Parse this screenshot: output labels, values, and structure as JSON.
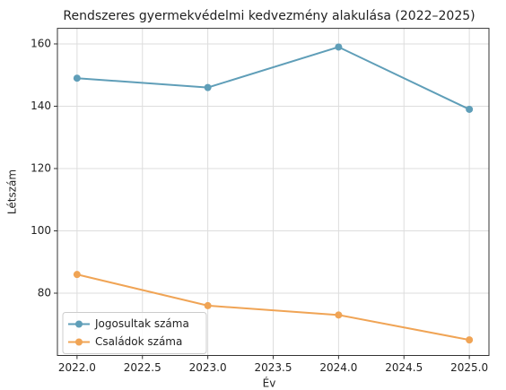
{
  "chart_data": {
    "type": "line",
    "title": "Rendszeres gyermekvédelmi kedvezmény alakulása (2022–2025)",
    "xlabel": "Év",
    "ylabel": "Létszám",
    "x": [
      2022,
      2023,
      2024,
      2025
    ],
    "series": [
      {
        "name": "Jogosultak száma",
        "color": "#5f9eb8",
        "values": [
          149,
          146,
          159,
          139
        ]
      },
      {
        "name": "Családok száma",
        "color": "#f0a455",
        "values": [
          86,
          76,
          73,
          65
        ]
      }
    ],
    "xlim": [
      2021.85,
      2025.15
    ],
    "xticks": [
      {
        "value": 2022,
        "label": "2022.0"
      },
      {
        "value": 2022.5,
        "label": "2022.5"
      },
      {
        "value": 2023,
        "label": "2023.0"
      },
      {
        "value": 2023.5,
        "label": "2023.5"
      },
      {
        "value": 2024,
        "label": "2024.0"
      },
      {
        "value": 2024.5,
        "label": "2024.5"
      },
      {
        "value": 2025,
        "label": "2025.0"
      }
    ],
    "ylim": [
      60,
      165
    ],
    "yticks": [
      80,
      100,
      120,
      140,
      160
    ],
    "grid": true,
    "legend": "lower left"
  }
}
